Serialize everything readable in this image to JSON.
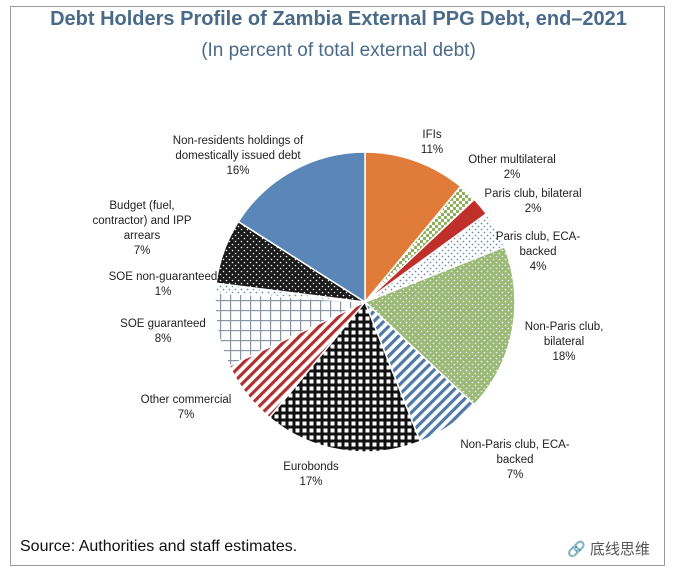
{
  "title": "Debt Holders Profile of Zambia External PPG Debt, end–2021",
  "subtitle": "(In percent of total external debt)",
  "source": "Source: Authorities and staff estimates.",
  "watermark": "🔗 底线思维",
  "chart_data": {
    "type": "pie",
    "title": "Debt Holders Profile of Zambia External PPG Debt, end–2021",
    "subtitle": "(In percent of total external debt)",
    "slices": [
      {
        "lines": [
          "IFIs",
          "11%"
        ],
        "value": 11,
        "color": "#e07b39",
        "pattern": "solid"
      },
      {
        "lines": [
          "Other multilateral",
          "2%"
        ],
        "value": 2,
        "color": "#8fb05a",
        "pattern": "checker"
      },
      {
        "lines": [
          "Paris club, bilateral",
          "2%"
        ],
        "value": 2,
        "color": "#c0302a",
        "pattern": "solid"
      },
      {
        "lines": [
          "Paris club, ECA-",
          "backed",
          "4%"
        ],
        "value": 4,
        "color": "#6e8fb0",
        "pattern": "dots-light"
      },
      {
        "lines": [
          "Non-Paris club,",
          "bilateral",
          "18%"
        ],
        "value": 18,
        "color": "#9bba78",
        "pattern": "dots-green"
      },
      {
        "lines": [
          "Non-Paris club, ECA-",
          "backed",
          "7%"
        ],
        "value": 7,
        "color": "#4f79a6",
        "pattern": "diag-blue"
      },
      {
        "lines": [
          "Eurobonds",
          "17%"
        ],
        "value": 17,
        "color": "#111111",
        "pattern": "grid-black"
      },
      {
        "lines": [
          "Other commercial",
          "7%"
        ],
        "value": 7,
        "color": "#b03030",
        "pattern": "diag-red"
      },
      {
        "lines": [
          "SOE guaranteed",
          "8%"
        ],
        "value": 8,
        "color": "#9aa8b8",
        "pattern": "grid-light"
      },
      {
        "lines": [
          "SOE non-guaranteed",
          "1%"
        ],
        "value": 1,
        "color": "#cfd8e3",
        "pattern": "dots-light"
      },
      {
        "lines": [
          "Budget (fuel,",
          "contractor) and IPP",
          "arrears",
          "7%"
        ],
        "value": 7,
        "color": "#1a1a1a",
        "pattern": "dots-black"
      },
      {
        "lines": [
          "Non-residents holdings of",
          "domestically issued debt",
          "16%"
        ],
        "value": 16,
        "color": "#5b87b8",
        "pattern": "solid"
      }
    ]
  }
}
